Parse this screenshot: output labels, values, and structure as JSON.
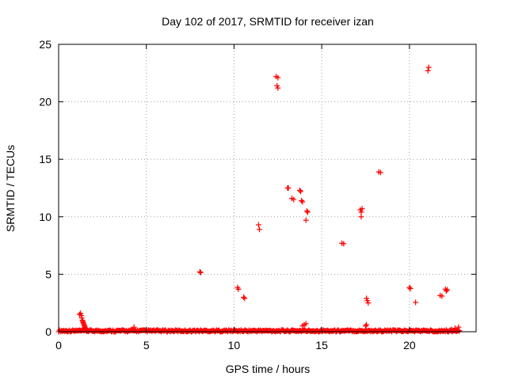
{
  "chart_data": {
    "type": "scatter",
    "title": "Day 102 of 2017, SRMTID for receiver izan",
    "xlabel": "GPS time / hours",
    "ylabel": "SRMTID / TECUs",
    "xlim": [
      0,
      23.8
    ],
    "ylim": [
      0,
      25
    ],
    "xticks": [
      0,
      5,
      10,
      15,
      20
    ],
    "yticks": [
      0,
      5,
      10,
      15,
      20,
      25
    ],
    "grid": true,
    "marker": "plus",
    "color": "#ff0000",
    "baseline": {
      "x_start": 0,
      "x_end": 22.9,
      "step": 0.05,
      "y_min": 0.0,
      "y_max": 0.15
    },
    "series": [
      {
        "values": [
          [
            1.2,
            1.5
          ],
          [
            1.25,
            1.6
          ],
          [
            1.3,
            1.4
          ],
          [
            1.32,
            1.2
          ],
          [
            1.35,
            1.0
          ],
          [
            1.38,
            0.9
          ],
          [
            1.4,
            0.8
          ],
          [
            1.42,
            0.7
          ],
          [
            1.45,
            0.6
          ],
          [
            1.48,
            0.5
          ],
          [
            1.5,
            0.4
          ],
          [
            1.55,
            0.3
          ],
          [
            1.6,
            0.2
          ],
          [
            4.3,
            0.4
          ],
          [
            8.05,
            5.2
          ],
          [
            8.1,
            5.15
          ],
          [
            10.2,
            3.85
          ],
          [
            10.25,
            3.7
          ],
          [
            10.55,
            3.0
          ],
          [
            10.6,
            2.9
          ],
          [
            11.4,
            9.3
          ],
          [
            11.45,
            8.9
          ],
          [
            12.4,
            22.2
          ],
          [
            12.5,
            22.1
          ],
          [
            12.45,
            21.4
          ],
          [
            12.5,
            21.2
          ],
          [
            13.05,
            12.5
          ],
          [
            13.1,
            12.5
          ],
          [
            13.3,
            11.6
          ],
          [
            13.4,
            11.5
          ],
          [
            13.75,
            12.3
          ],
          [
            13.8,
            12.2
          ],
          [
            13.85,
            11.4
          ],
          [
            13.9,
            11.3
          ],
          [
            13.9,
            0.5
          ],
          [
            14.0,
            0.6
          ],
          [
            14.1,
            0.7
          ],
          [
            14.1,
            9.7
          ],
          [
            14.15,
            10.5
          ],
          [
            14.2,
            10.4
          ],
          [
            16.15,
            7.7
          ],
          [
            16.25,
            7.65
          ],
          [
            17.2,
            10.6
          ],
          [
            17.25,
            10.4
          ],
          [
            17.3,
            10.7
          ],
          [
            17.25,
            10.0
          ],
          [
            17.5,
            0.5
          ],
          [
            17.55,
            0.6
          ],
          [
            17.55,
            2.9
          ],
          [
            17.6,
            2.7
          ],
          [
            17.65,
            2.5
          ],
          [
            18.25,
            13.9
          ],
          [
            18.35,
            13.85
          ],
          [
            20.0,
            3.85
          ],
          [
            20.05,
            3.75
          ],
          [
            20.35,
            2.55
          ],
          [
            21.05,
            22.7
          ],
          [
            21.1,
            23.0
          ],
          [
            21.75,
            3.15
          ],
          [
            21.85,
            3.1
          ],
          [
            22.05,
            3.7
          ],
          [
            22.15,
            3.65
          ],
          [
            22.1,
            3.55
          ],
          [
            22.4,
            0.2
          ],
          [
            22.6,
            0.3
          ],
          [
            22.8,
            0.4
          ]
        ]
      }
    ]
  }
}
